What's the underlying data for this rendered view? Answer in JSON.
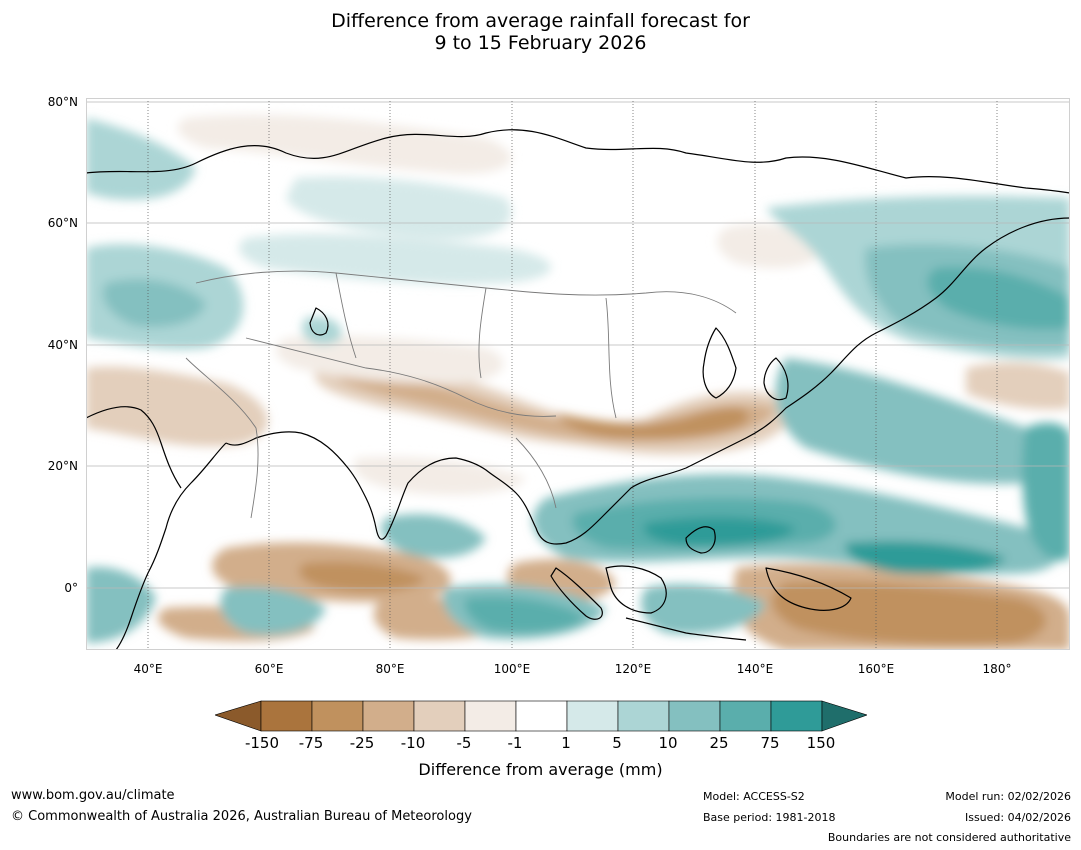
{
  "title": {
    "line1": "Difference from average rainfall forecast for",
    "line2": "9 to 15 February 2026"
  },
  "map": {
    "lat_labels": [
      "80°N",
      "60°N",
      "40°N",
      "20°N",
      "0°"
    ],
    "lon_labels": [
      "40°E",
      "60°E",
      "80°E",
      "100°E",
      "120°E",
      "140°E",
      "160°E",
      "180°"
    ]
  },
  "colorbar": {
    "ticks": [
      "-150",
      "-75",
      "-25",
      "-10",
      "-5",
      "-1",
      "1",
      "5",
      "10",
      "25",
      "75",
      "150"
    ],
    "colors": [
      "#aa743d",
      "#c0915e",
      "#d2ae8b",
      "#e3cfbc",
      "#f3ece6",
      "#ffffff",
      "#d5e9e9",
      "#acd5d5",
      "#84c0c0",
      "#5aaeac",
      "#2f9b98"
    ],
    "under_color": "#8b5a2b",
    "over_color": "#1f6e6b",
    "label": "Difference from average (mm)"
  },
  "footer": {
    "website": "www.bom.gov.au/climate",
    "copyright": "© Commonwealth of Australia 2026, Australian Bureau of Meteorology",
    "model": "Model: ACCESS-S2",
    "base_period": "Base period: 1981-2018",
    "model_run": "Model run: 02/02/2026",
    "issued": "Issued: 04/02/2026",
    "boundaries_note": "Boundaries are not considered authoritative"
  }
}
